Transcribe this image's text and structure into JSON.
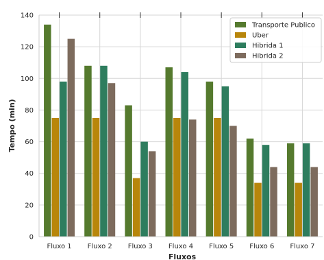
{
  "chart_data": {
    "type": "bar",
    "title": "",
    "xlabel": "Fluxos",
    "ylabel": "Tempo (min)",
    "ylim": [
      0,
      140
    ],
    "yticks": [
      0,
      20,
      40,
      60,
      80,
      100,
      120,
      140
    ],
    "grid": true,
    "legend_position": "top-right",
    "categories": [
      "Fluxo 1",
      "Fluxo 2",
      "Fluxo 3",
      "Fluxo 4",
      "Fluxo 5",
      "Fluxo 6",
      "Fluxo 7"
    ],
    "series": [
      {
        "name": "Transporte Publico",
        "color": "#557a2e",
        "values": [
          134,
          108,
          83,
          107,
          98,
          62,
          59
        ]
      },
      {
        "name": "Uber",
        "color": "#b8860b",
        "values": [
          75,
          75,
          37,
          75,
          75,
          34,
          34
        ]
      },
      {
        "name": "Hibrida 1",
        "color": "#2e7d5e",
        "values": [
          98,
          108,
          60,
          104,
          95,
          58,
          59
        ]
      },
      {
        "name": "Hibrida 2",
        "color": "#7d6b5d",
        "values": [
          125,
          97,
          54,
          74,
          70,
          44,
          44
        ]
      }
    ]
  }
}
